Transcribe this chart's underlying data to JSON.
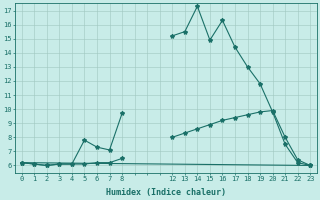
{
  "xlabel": "Humidex (Indice chaleur)",
  "bg_color": "#c8ece8",
  "grid_color": "#a0c8c0",
  "line_color": "#1a7068",
  "xlim": [
    -0.5,
    23.5
  ],
  "ylim": [
    5.5,
    17.5
  ],
  "xticks": [
    0,
    1,
    2,
    3,
    4,
    5,
    6,
    7,
    8,
    12,
    13,
    14,
    15,
    16,
    17,
    18,
    19,
    20,
    21,
    22,
    23
  ],
  "yticks": [
    6,
    7,
    8,
    9,
    10,
    11,
    12,
    13,
    14,
    15,
    16,
    17
  ],
  "line1_seg1_x": [
    0,
    1,
    2,
    3,
    4,
    5,
    6,
    7,
    8
  ],
  "line1_seg1_y": [
    6.2,
    6.1,
    6.0,
    6.1,
    6.1,
    7.8,
    7.3,
    7.1,
    9.7
  ],
  "line1_seg2_x": [
    12,
    13,
    14,
    15,
    16,
    17,
    18,
    19,
    20,
    21,
    22,
    23
  ],
  "line1_seg2_y": [
    15.2,
    15.5,
    17.3,
    14.9,
    16.3,
    14.4,
    13.0,
    11.8,
    9.8,
    7.5,
    6.2,
    6.0
  ],
  "line2_seg1_x": [
    0,
    1,
    2,
    3,
    4,
    5,
    6,
    7,
    8
  ],
  "line2_seg1_y": [
    6.2,
    6.1,
    6.0,
    6.1,
    6.1,
    6.1,
    6.2,
    6.2,
    6.5
  ],
  "line2_seg2_x": [
    12,
    13,
    14,
    15,
    16,
    17,
    18,
    19,
    20,
    21,
    22,
    23
  ],
  "line2_seg2_y": [
    8.0,
    8.3,
    8.6,
    8.9,
    9.2,
    9.4,
    9.6,
    9.8,
    9.9,
    8.0,
    6.4,
    6.0
  ],
  "line3_x": [
    0,
    23
  ],
  "line3_y": [
    6.2,
    6.0
  ],
  "figsize": [
    3.2,
    2.0
  ],
  "dpi": 100,
  "tick_fontsize": 5,
  "xlabel_fontsize": 6,
  "marker_size": 3,
  "line_width": 0.8
}
